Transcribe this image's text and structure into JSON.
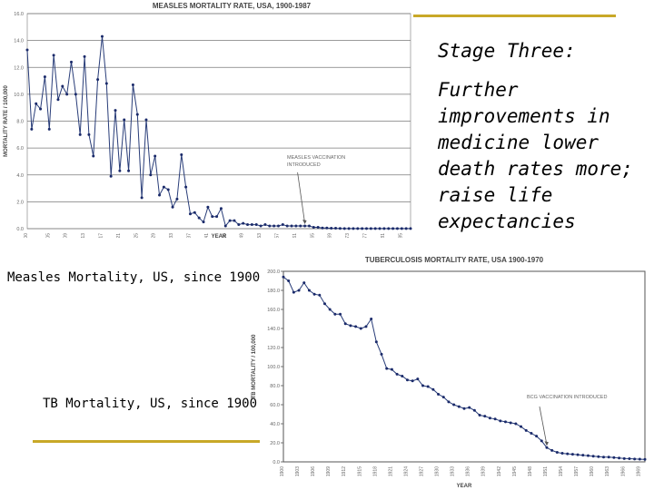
{
  "slide": {
    "stage_title": "Stage Three:",
    "stage_body": "Further improvements in medicine lower death rates more; raise life expectancies",
    "caption_measles": "Measles Mortality, US, since 1900",
    "caption_tb": "TB Mortality, US, since 1900",
    "accent_color": "#c8a828"
  },
  "chart_data": [
    {
      "id": "measles",
      "type": "line",
      "title": "MEASLES MORTALITY RATE, USA, 1900-1987",
      "xlabel": "YEAR",
      "ylabel": "MORTALITY RATE / 100,000",
      "x": [
        1900,
        1901,
        1902,
        1903,
        1904,
        1905,
        1906,
        1907,
        1908,
        1909,
        1910,
        1911,
        1912,
        1913,
        1914,
        1915,
        1916,
        1917,
        1918,
        1919,
        1920,
        1921,
        1922,
        1923,
        1924,
        1925,
        1926,
        1927,
        1928,
        1929,
        1930,
        1931,
        1932,
        1933,
        1934,
        1935,
        1936,
        1937,
        1938,
        1939,
        1940,
        1941,
        1942,
        1943,
        1944,
        1945,
        1946,
        1947,
        1948,
        1949,
        1950,
        1951,
        1952,
        1953,
        1954,
        1955,
        1956,
        1957,
        1958,
        1959,
        1960,
        1961,
        1962,
        1963,
        1964,
        1965,
        1966,
        1967,
        1968,
        1969,
        1970,
        1971,
        1972,
        1973,
        1974,
        1975,
        1976,
        1977,
        1978,
        1979,
        1980,
        1981,
        1982,
        1983,
        1984,
        1985,
        1986,
        1987
      ],
      "y": [
        13.3,
        7.4,
        9.3,
        8.9,
        11.3,
        7.4,
        12.9,
        9.6,
        10.6,
        10.0,
        12.4,
        10.0,
        7.0,
        12.8,
        7.0,
        5.4,
        11.1,
        14.3,
        10.8,
        3.9,
        8.8,
        4.3,
        8.1,
        4.3,
        10.7,
        8.5,
        2.3,
        8.1,
        4.0,
        5.4,
        2.5,
        3.1,
        2.9,
        1.6,
        2.2,
        5.5,
        3.1,
        1.1,
        1.2,
        0.8,
        0.5,
        1.6,
        0.9,
        0.9,
        1.5,
        0.2,
        0.6,
        0.6,
        0.3,
        0.4,
        0.3,
        0.3,
        0.3,
        0.2,
        0.3,
        0.2,
        0.2,
        0.2,
        0.3,
        0.2,
        0.2,
        0.2,
        0.2,
        0.2,
        0.2,
        0.1,
        0.1,
        0.05,
        0.05,
        0.03,
        0.03,
        0.02,
        0.01,
        0.01,
        0.01,
        0.01,
        0.01,
        0.01,
        0.01,
        0.01,
        0.01,
        0.01,
        0.01,
        0.01,
        0.01,
        0.01,
        0.01,
        0.01
      ],
      "ylim": [
        0,
        16
      ],
      "yticks": [
        "0.0",
        "2.0",
        "4.0",
        "6.0",
        "8.0",
        "10.0",
        "12.0",
        "14.0",
        "16.0"
      ],
      "xticks": [
        "1900",
        "1905",
        "1909",
        "1913",
        "1917",
        "1921",
        "1925",
        "1929",
        "1933",
        "1937",
        "1941",
        "1945",
        "1949",
        "1953",
        "1957",
        "1961",
        "1965",
        "1969",
        "1973",
        "1977",
        "1981",
        "1985"
      ],
      "annotation": {
        "lines": [
          "MEASLES VACCINATION",
          "INTRODUCED"
        ],
        "year": 1963
      },
      "grid": true,
      "legend": "none"
    },
    {
      "id": "tb",
      "type": "line",
      "title": "TUBERCULOSIS MORTALITY RATE, USA 1900-1970",
      "xlabel": "YEAR",
      "ylabel": "TB MORTALITY / 100,000",
      "x": [
        1900,
        1901,
        1902,
        1903,
        1904,
        1905,
        1906,
        1907,
        1908,
        1909,
        1910,
        1911,
        1912,
        1913,
        1914,
        1915,
        1916,
        1917,
        1918,
        1919,
        1920,
        1921,
        1922,
        1923,
        1924,
        1925,
        1926,
        1927,
        1928,
        1929,
        1930,
        1931,
        1932,
        1933,
        1934,
        1935,
        1936,
        1937,
        1938,
        1939,
        1940,
        1941,
        1942,
        1943,
        1944,
        1945,
        1946,
        1947,
        1948,
        1949,
        1950,
        1951,
        1952,
        1953,
        1954,
        1955,
        1956,
        1957,
        1958,
        1959,
        1960,
        1961,
        1962,
        1963,
        1964,
        1965,
        1966,
        1967,
        1968,
        1969,
        1970
      ],
      "y": [
        194,
        190,
        178,
        180,
        188,
        180,
        176,
        175,
        166,
        160,
        155,
        155,
        145,
        143,
        142,
        140,
        142,
        150,
        126,
        113,
        98,
        97,
        92,
        90,
        86,
        85,
        87,
        80,
        79,
        76,
        71,
        68,
        63,
        60,
        58,
        56,
        57,
        54,
        49,
        48,
        46,
        45,
        43,
        42,
        41,
        40,
        37,
        33,
        30,
        27,
        22,
        15,
        12,
        10,
        9,
        8.5,
        8,
        7.5,
        7,
        6.5,
        6,
        5.5,
        5,
        5,
        4.5,
        4,
        3.5,
        3.3,
        3,
        2.8,
        2.6
      ],
      "ylim": [
        0,
        200
      ],
      "yticks": [
        "0.0",
        "20.0",
        "40.0",
        "60.0",
        "80.0",
        "100.0",
        "120.0",
        "140.0",
        "160.0",
        "180.0",
        "200.0"
      ],
      "xticks": [
        "1900",
        "1903",
        "1906",
        "1909",
        "1912",
        "1915",
        "1918",
        "1921",
        "1924",
        "1927",
        "1930",
        "1933",
        "1936",
        "1939",
        "1942",
        "1945",
        "1948",
        "1951",
        "1954",
        "1957",
        "1960",
        "1963",
        "1966",
        "1969"
      ],
      "annotation": {
        "lines": [
          "BCG VACCINATION INTRODUCED"
        ],
        "year": 1951
      },
      "grid": false,
      "legend": "none"
    }
  ]
}
